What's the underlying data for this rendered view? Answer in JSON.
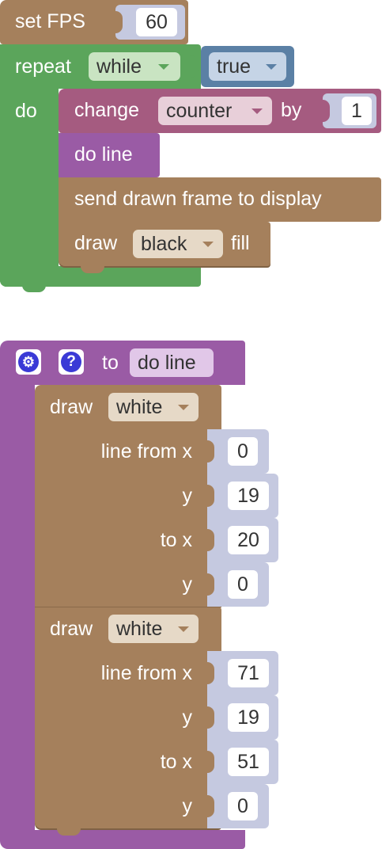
{
  "colors": {
    "brown": "#a5805c",
    "brown_dark": "#7f6244",
    "green": "#5ba55b",
    "green_field": "#c9e4c2",
    "blue": "#5b80a5",
    "blue_field": "#c5d4e6",
    "magenta": "#a55b80",
    "magenta_field": "#e8cfd9",
    "purple": "#9a5ba5",
    "purple_field": "#e1c7e8",
    "num_socket": "#c5c9e0",
    "brown_field": "#e6d9c7",
    "icon_blue": "#3a3ad6"
  },
  "block1": {
    "set_fps": {
      "label": "set FPS",
      "value": "60"
    },
    "repeat": {
      "label": "repeat",
      "mode": "while",
      "condition": "true",
      "do_label": "do"
    },
    "change": {
      "label": "change",
      "variable": "counter",
      "by_label": "by",
      "value": "1"
    },
    "call": {
      "label": "do line"
    },
    "send": {
      "label": "send drawn frame to display"
    },
    "fill": {
      "label": "draw",
      "color": "black",
      "suffix": "fill"
    }
  },
  "block2": {
    "settings_icon": "gear-icon",
    "help_icon": "question-icon",
    "help_glyph": "?",
    "gear_glyph": "⚙",
    "to_label": "to",
    "name": "do line",
    "lines": [
      {
        "draw_label": "draw",
        "color": "white",
        "from_x_label": "line from x",
        "y_label": "y",
        "to_x_label": "to x",
        "y2_label": "y",
        "x1": "0",
        "y1": "19",
        "x2": "20",
        "y2": "0"
      },
      {
        "draw_label": "draw",
        "color": "white",
        "from_x_label": "line from x",
        "y_label": "y",
        "to_x_label": "to x",
        "y2_label": "y",
        "x1": "71",
        "y1": "19",
        "x2": "51",
        "y2": "0"
      }
    ]
  }
}
